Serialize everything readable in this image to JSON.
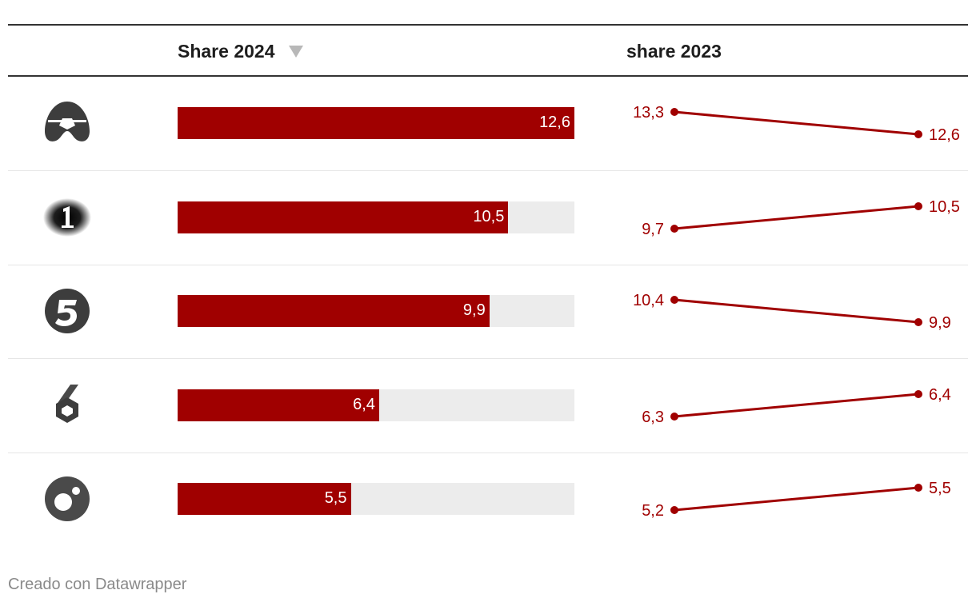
{
  "table": {
    "columns": {
      "current": "Share 2024",
      "previous": "share 2023"
    },
    "sort": "descending"
  },
  "chart_data": {
    "type": "table",
    "title": "",
    "columns": [
      "Share 2024",
      "share 2023"
    ],
    "rows": [
      {
        "channel": "antena-3",
        "logo": "antena-3-logo",
        "share_2024": 12.6,
        "label_2024": "12,6",
        "share_2023": 13.3,
        "label_2023": "13,3"
      },
      {
        "channel": "la-1",
        "logo": "la-1-logo",
        "share_2024": 10.5,
        "label_2024": "10,5",
        "share_2023": 9.7,
        "label_2023": "9,7"
      },
      {
        "channel": "telecinco",
        "logo": "telecinco-logo",
        "share_2024": 9.9,
        "label_2024": "9,9",
        "share_2023": 10.4,
        "label_2023": "10,4"
      },
      {
        "channel": "la-sexta",
        "logo": "la-sexta-logo",
        "share_2024": 6.4,
        "label_2024": "6,4",
        "share_2023": 6.3,
        "label_2023": "6,3"
      },
      {
        "channel": "cuatro",
        "logo": "cuatro-logo",
        "share_2024": 5.5,
        "label_2024": "5,5",
        "share_2023": 5.2,
        "label_2023": "5,2"
      }
    ],
    "bar_max": 12.6
  },
  "colors": {
    "accent": "#a00000",
    "bar_background": "#ececec",
    "logo": "#3d3d3d"
  },
  "footer": {
    "credit": "Creado con Datawrapper"
  }
}
